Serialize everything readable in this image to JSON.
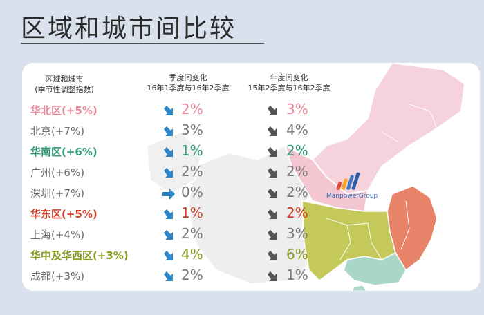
{
  "title": "区域和城市间比较",
  "chart_data": {
    "type": "table",
    "columns": {
      "region": {
        "line1": "区域和城市",
        "line2": "(季节性调整指数)"
      },
      "qoq": {
        "line1": "季度间变化",
        "line2": "16年1季度与16年2季度"
      },
      "yoy": {
        "line1": "年度间变化",
        "line2": "15年2季度与16年2季度"
      }
    },
    "rows": [
      {
        "name": "华北区(+5%)",
        "qoq": "2%",
        "qoq_trend": "down",
        "yoy": "3%",
        "yoy_trend": "down",
        "color": "#e8899a",
        "bold": true
      },
      {
        "name": "北京(+7%)",
        "qoq": "3%",
        "qoq_trend": "down",
        "yoy": "4%",
        "yoy_trend": "down",
        "color": "#6b6b6b",
        "bold": false
      },
      {
        "name": "华南区(+6%)",
        "qoq": "1%",
        "qoq_trend": "down",
        "yoy": "2%",
        "yoy_trend": "down",
        "color": "#2f9a74",
        "bold": true
      },
      {
        "name": "广州(+6%)",
        "qoq": "2%",
        "qoq_trend": "down",
        "yoy": "2%",
        "yoy_trend": "down",
        "color": "#6b6b6b",
        "bold": false
      },
      {
        "name": "深圳(+7%)",
        "qoq": "0%",
        "qoq_trend": "flat",
        "yoy": "2%",
        "yoy_trend": "down",
        "color": "#6b6b6b",
        "bold": false
      },
      {
        "name": "华东区(+5%)",
        "qoq": "1%",
        "qoq_trend": "down",
        "yoy": "2%",
        "yoy_trend": "down",
        "color": "#d2402a",
        "bold": true
      },
      {
        "name": "上海(+4%)",
        "qoq": "2%",
        "qoq_trend": "down",
        "yoy": "3%",
        "yoy_trend": "down",
        "color": "#6b6b6b",
        "bold": false
      },
      {
        "name": "华中及华西区(+3%)",
        "qoq": "4%",
        "qoq_trend": "down",
        "yoy": "6%",
        "yoy_trend": "down",
        "color": "#8a9a1c",
        "bold": true
      },
      {
        "name": "成都(+3%)",
        "qoq": "2%",
        "qoq_trend": "down",
        "yoy": "1%",
        "yoy_trend": "down",
        "color": "#6b6b6b",
        "bold": false
      }
    ]
  },
  "colors": {
    "qoq_arrow": "#2f86c9",
    "yoy_arrow": "#555555",
    "map_north": "#f6d3dc",
    "map_central": "#c4c95a",
    "map_south": "#a9d6c6",
    "map_east": "#e8846a",
    "map_base": "#eeeeee"
  },
  "logo": {
    "text": "ManpowerGroup",
    "icon": "manpowergroup-logo-icon"
  }
}
